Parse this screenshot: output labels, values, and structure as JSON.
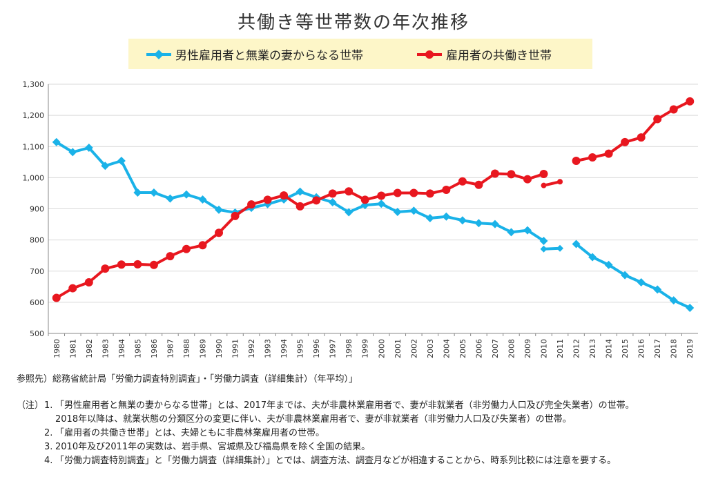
{
  "chart_data": {
    "type": "line",
    "title": "共働き等世帯数の年次推移",
    "categories": [
      "1980",
      "1981",
      "1982",
      "1983",
      "1984",
      "1985",
      "1986",
      "1987",
      "1988",
      "1989",
      "1990",
      "1991",
      "1992",
      "1993",
      "1994",
      "1995",
      "1996",
      "1997",
      "1998",
      "1999",
      "2000",
      "2001",
      "2002",
      "2003",
      "2004",
      "2005",
      "2006",
      "2007",
      "2008",
      "2009",
      "2010",
      "2011",
      "2012",
      "2013",
      "2014",
      "2015",
      "2016",
      "2017",
      "2018",
      "2019"
    ],
    "ylim": [
      500,
      1300
    ],
    "yticks": [
      "500",
      "600",
      "700",
      "800",
      "900",
      "1,000",
      "1,100",
      "1,200",
      "1,300"
    ],
    "series": [
      {
        "name": "男性雇用者と無業の妻からなる世帯",
        "color": "#1ab2e8",
        "marker": "diamond",
        "values": [
          1114,
          1082,
          1096,
          1038,
          1054,
          952,
          952,
          933,
          946,
          930,
          897,
          888,
          903,
          915,
          930,
          955,
          937,
          921,
          889,
          912,
          916,
          890,
          894,
          870,
          875,
          863,
          854,
          851,
          825,
          831,
          797,
          null,
          787,
          745,
          720,
          687,
          664,
          641,
          606,
          582
        ],
        "broken_2010": 771,
        "broken_2011": 773
      },
      {
        "name": "雇用者の共働き世帯",
        "color": "#e8171f",
        "marker": "circle",
        "values": [
          614,
          645,
          664,
          708,
          721,
          722,
          720,
          748,
          771,
          783,
          823,
          877,
          914,
          929,
          943,
          908,
          927,
          949,
          956,
          929,
          942,
          951,
          951,
          949,
          961,
          988,
          977,
          1013,
          1011,
          995,
          1012,
          null,
          1054,
          1065,
          1077,
          1114,
          1129,
          1188,
          1219,
          1245
        ],
        "broken_2010": 975,
        "broken_2011": 987
      }
    ],
    "grid": true,
    "legend_position": "top"
  },
  "source": "参照先）総務省統計局「労働力調査特別調査」・「労働力調査（詳細集計）（年平均）」",
  "notes": {
    "prefix": "（注）",
    "items": [
      {
        "num": "1.",
        "text": "「男性雇用者と無業の妻からなる世帯」とは、2017年までは、夫が非農林業雇用者で、妻が非就業者（非労働力人口及び完全失業者）の世帯。"
      },
      {
        "num": "",
        "text": "2018年以降は、就業状態の分類区分の変更に伴い、夫が非農林業雇用者で、妻が非就業者（非労働力人口及び失業者）の世帯。"
      },
      {
        "num": "2.",
        "text": "「雇用者の共働き世帯」とは、夫婦ともに非農林業雇用者の世帯。"
      },
      {
        "num": "3.",
        "text": "2010年及び2011年の実数は、岩手県、宮城県及び福島県を除く全国の結果。"
      },
      {
        "num": "4.",
        "text": "「労働力調査特別調査」と「労働力調査（詳細集計）」とでは、調査方法、調査月などが相違することから、時系列比較には注意を要する。"
      }
    ]
  }
}
